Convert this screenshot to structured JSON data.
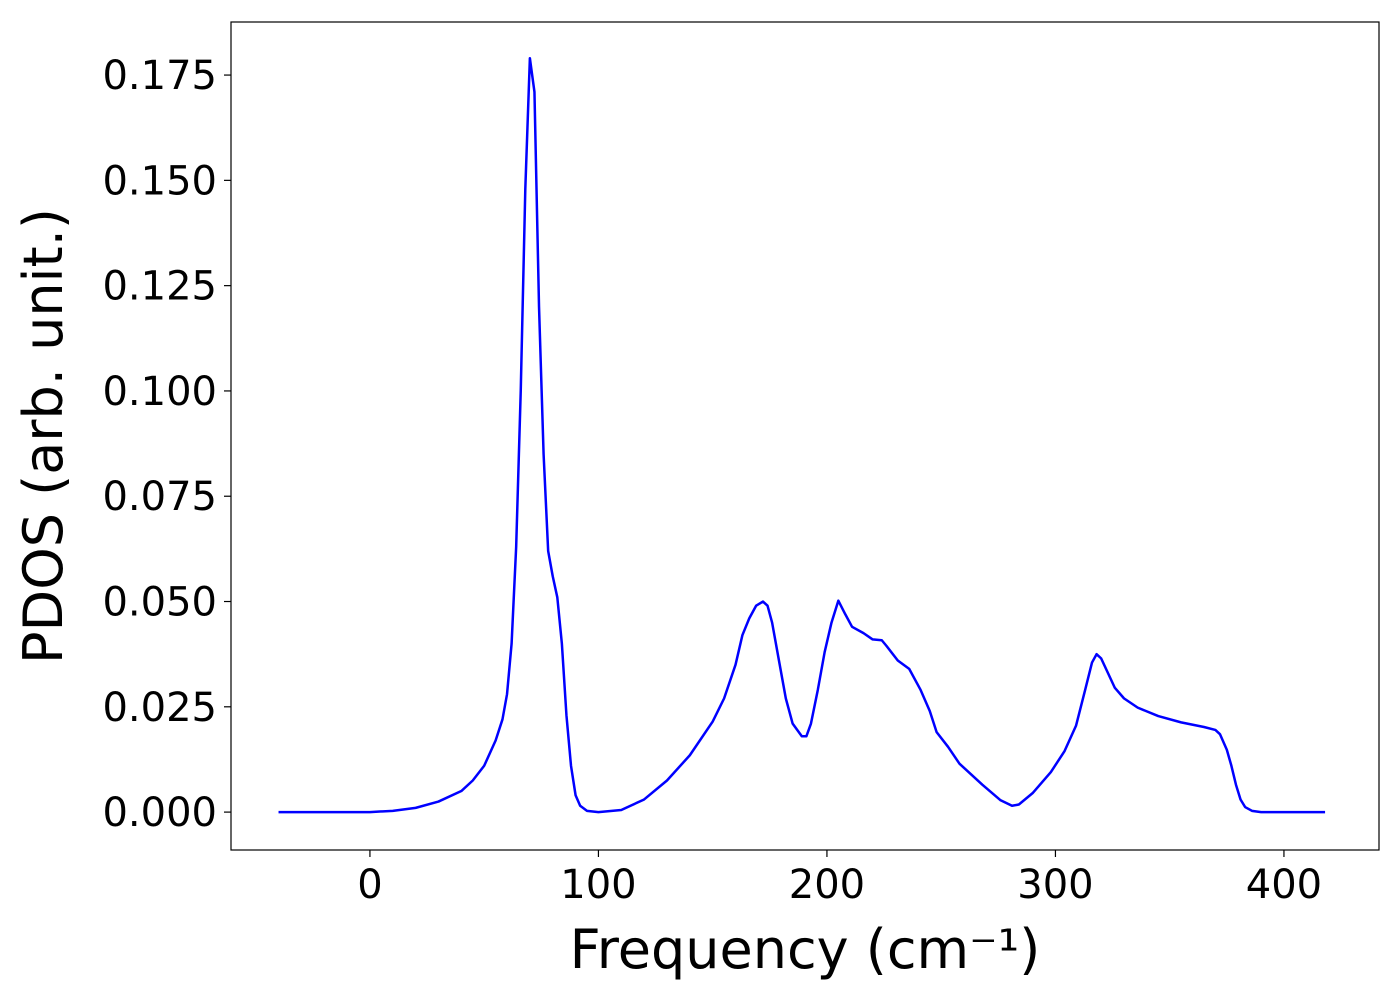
{
  "chart_data": {
    "type": "line",
    "x_label": "Frequency (cm⁻¹)",
    "y_label": "PDOS (arb. unit.)",
    "x": [
      -40,
      0,
      10,
      20,
      30,
      40,
      45,
      50,
      55,
      58,
      60,
      62,
      64,
      66,
      68,
      70,
      72,
      74,
      76,
      78,
      80,
      82,
      84,
      86,
      88,
      90,
      92,
      95,
      100,
      110,
      120,
      130,
      140,
      150,
      155,
      160,
      163,
      166,
      169,
      172,
      174,
      176,
      179,
      182,
      185,
      189,
      191,
      193,
      196,
      199,
      202,
      205,
      208,
      211,
      216,
      220,
      224,
      226,
      231,
      236,
      241,
      245,
      248,
      253,
      258,
      268,
      276,
      281,
      284,
      290,
      298,
      304,
      309,
      313,
      316,
      318,
      320,
      323,
      326,
      330,
      336,
      345,
      355,
      365,
      370,
      372,
      375,
      377,
      379,
      381,
      383,
      386,
      390,
      418
    ],
    "series": [
      {
        "name": "PDOS",
        "color": "#0000ff",
        "values": [
          0,
          0,
          0.0003,
          0.001,
          0.0025,
          0.005,
          0.0075,
          0.011,
          0.017,
          0.022,
          0.028,
          0.04,
          0.063,
          0.1,
          0.148,
          0.179,
          0.171,
          0.12,
          0.085,
          0.062,
          0.056,
          0.051,
          0.04,
          0.023,
          0.011,
          0.004,
          0.0015,
          0.0003,
          0,
          0.0005,
          0.003,
          0.0075,
          0.0135,
          0.0215,
          0.027,
          0.035,
          0.042,
          0.046,
          0.049,
          0.05,
          0.049,
          0.045,
          0.036,
          0.027,
          0.021,
          0.018,
          0.018,
          0.021,
          0.029,
          0.038,
          0.045,
          0.0502,
          0.047,
          0.044,
          0.0425,
          0.041,
          0.0408,
          0.0395,
          0.036,
          0.034,
          0.029,
          0.024,
          0.019,
          0.0155,
          0.0115,
          0.0065,
          0.0028,
          0.0015,
          0.0018,
          0.0045,
          0.0095,
          0.0145,
          0.0205,
          0.029,
          0.0355,
          0.0375,
          0.0365,
          0.033,
          0.0295,
          0.027,
          0.0248,
          0.0228,
          0.0213,
          0.0202,
          0.0195,
          0.0185,
          0.0148,
          0.011,
          0.0065,
          0.003,
          0.0012,
          0.0003,
          0,
          0
        ]
      }
    ],
    "xlim": [
      -60.8,
      441.6
    ],
    "xticks": [
      0,
      100,
      200,
      300,
      400
    ],
    "ylim": [
      -0.009,
      0.1876
    ],
    "yticks": [
      {
        "value": 0,
        "label": "0.000"
      },
      {
        "value": 0.025,
        "label": "0.025"
      },
      {
        "value": 0.05,
        "label": "0.050"
      },
      {
        "value": 0.075,
        "label": "0.075"
      },
      {
        "value": 0.1,
        "label": "0.100"
      },
      {
        "value": 0.125,
        "label": "0.125"
      },
      {
        "value": 0.15,
        "label": "0.150"
      },
      {
        "value": 0.175,
        "label": "0.175"
      }
    ],
    "grid": false
  }
}
